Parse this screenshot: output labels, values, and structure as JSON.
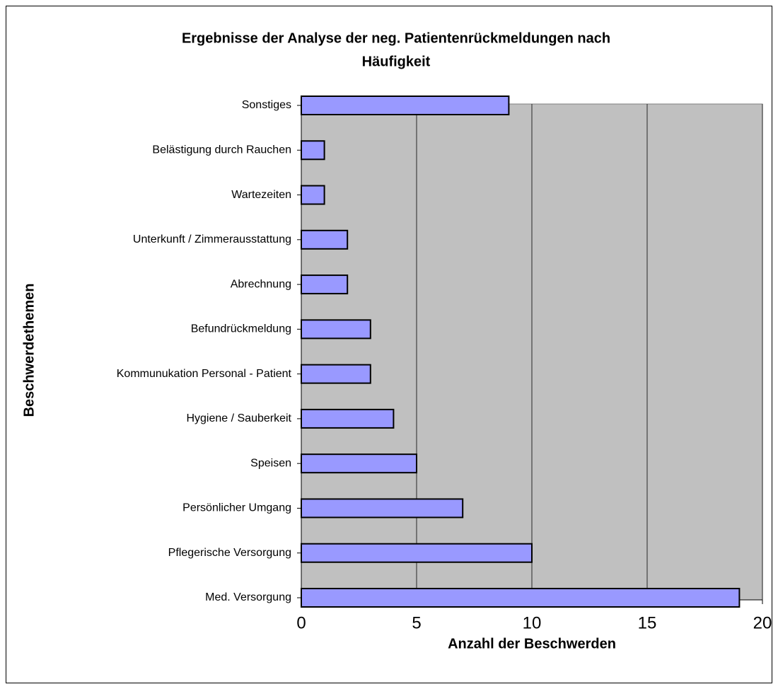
{
  "chart_data": {
    "type": "bar",
    "orientation": "horizontal",
    "title": [
      "Ergebnisse der Analyse der neg. Patientenrückmeldungen nach",
      "Häufigkeit"
    ],
    "x_label": "Anzahl der Beschwerden",
    "y_label": "Beschwerdethemen",
    "categories": [
      "Med. Versorgung",
      "Pflegerische Versorgung",
      "Persönlicher Umgang",
      "Speisen",
      "Hygiene / Sauberkeit",
      "Kommunukation Personal - Patient",
      "Befundrückmeldung",
      "Abrechnung",
      "Unterkunft / Zimmerausstattung",
      "Wartezeiten",
      "Belästigung durch Rauchen",
      "Sonstiges"
    ],
    "values": [
      19,
      10,
      7,
      5,
      4,
      3,
      3,
      2,
      2,
      1,
      1,
      9
    ],
    "color": "#9999ff",
    "xlim": [
      0,
      20
    ],
    "xticks": [
      0,
      5,
      10,
      15,
      20
    ],
    "grid": true
  }
}
